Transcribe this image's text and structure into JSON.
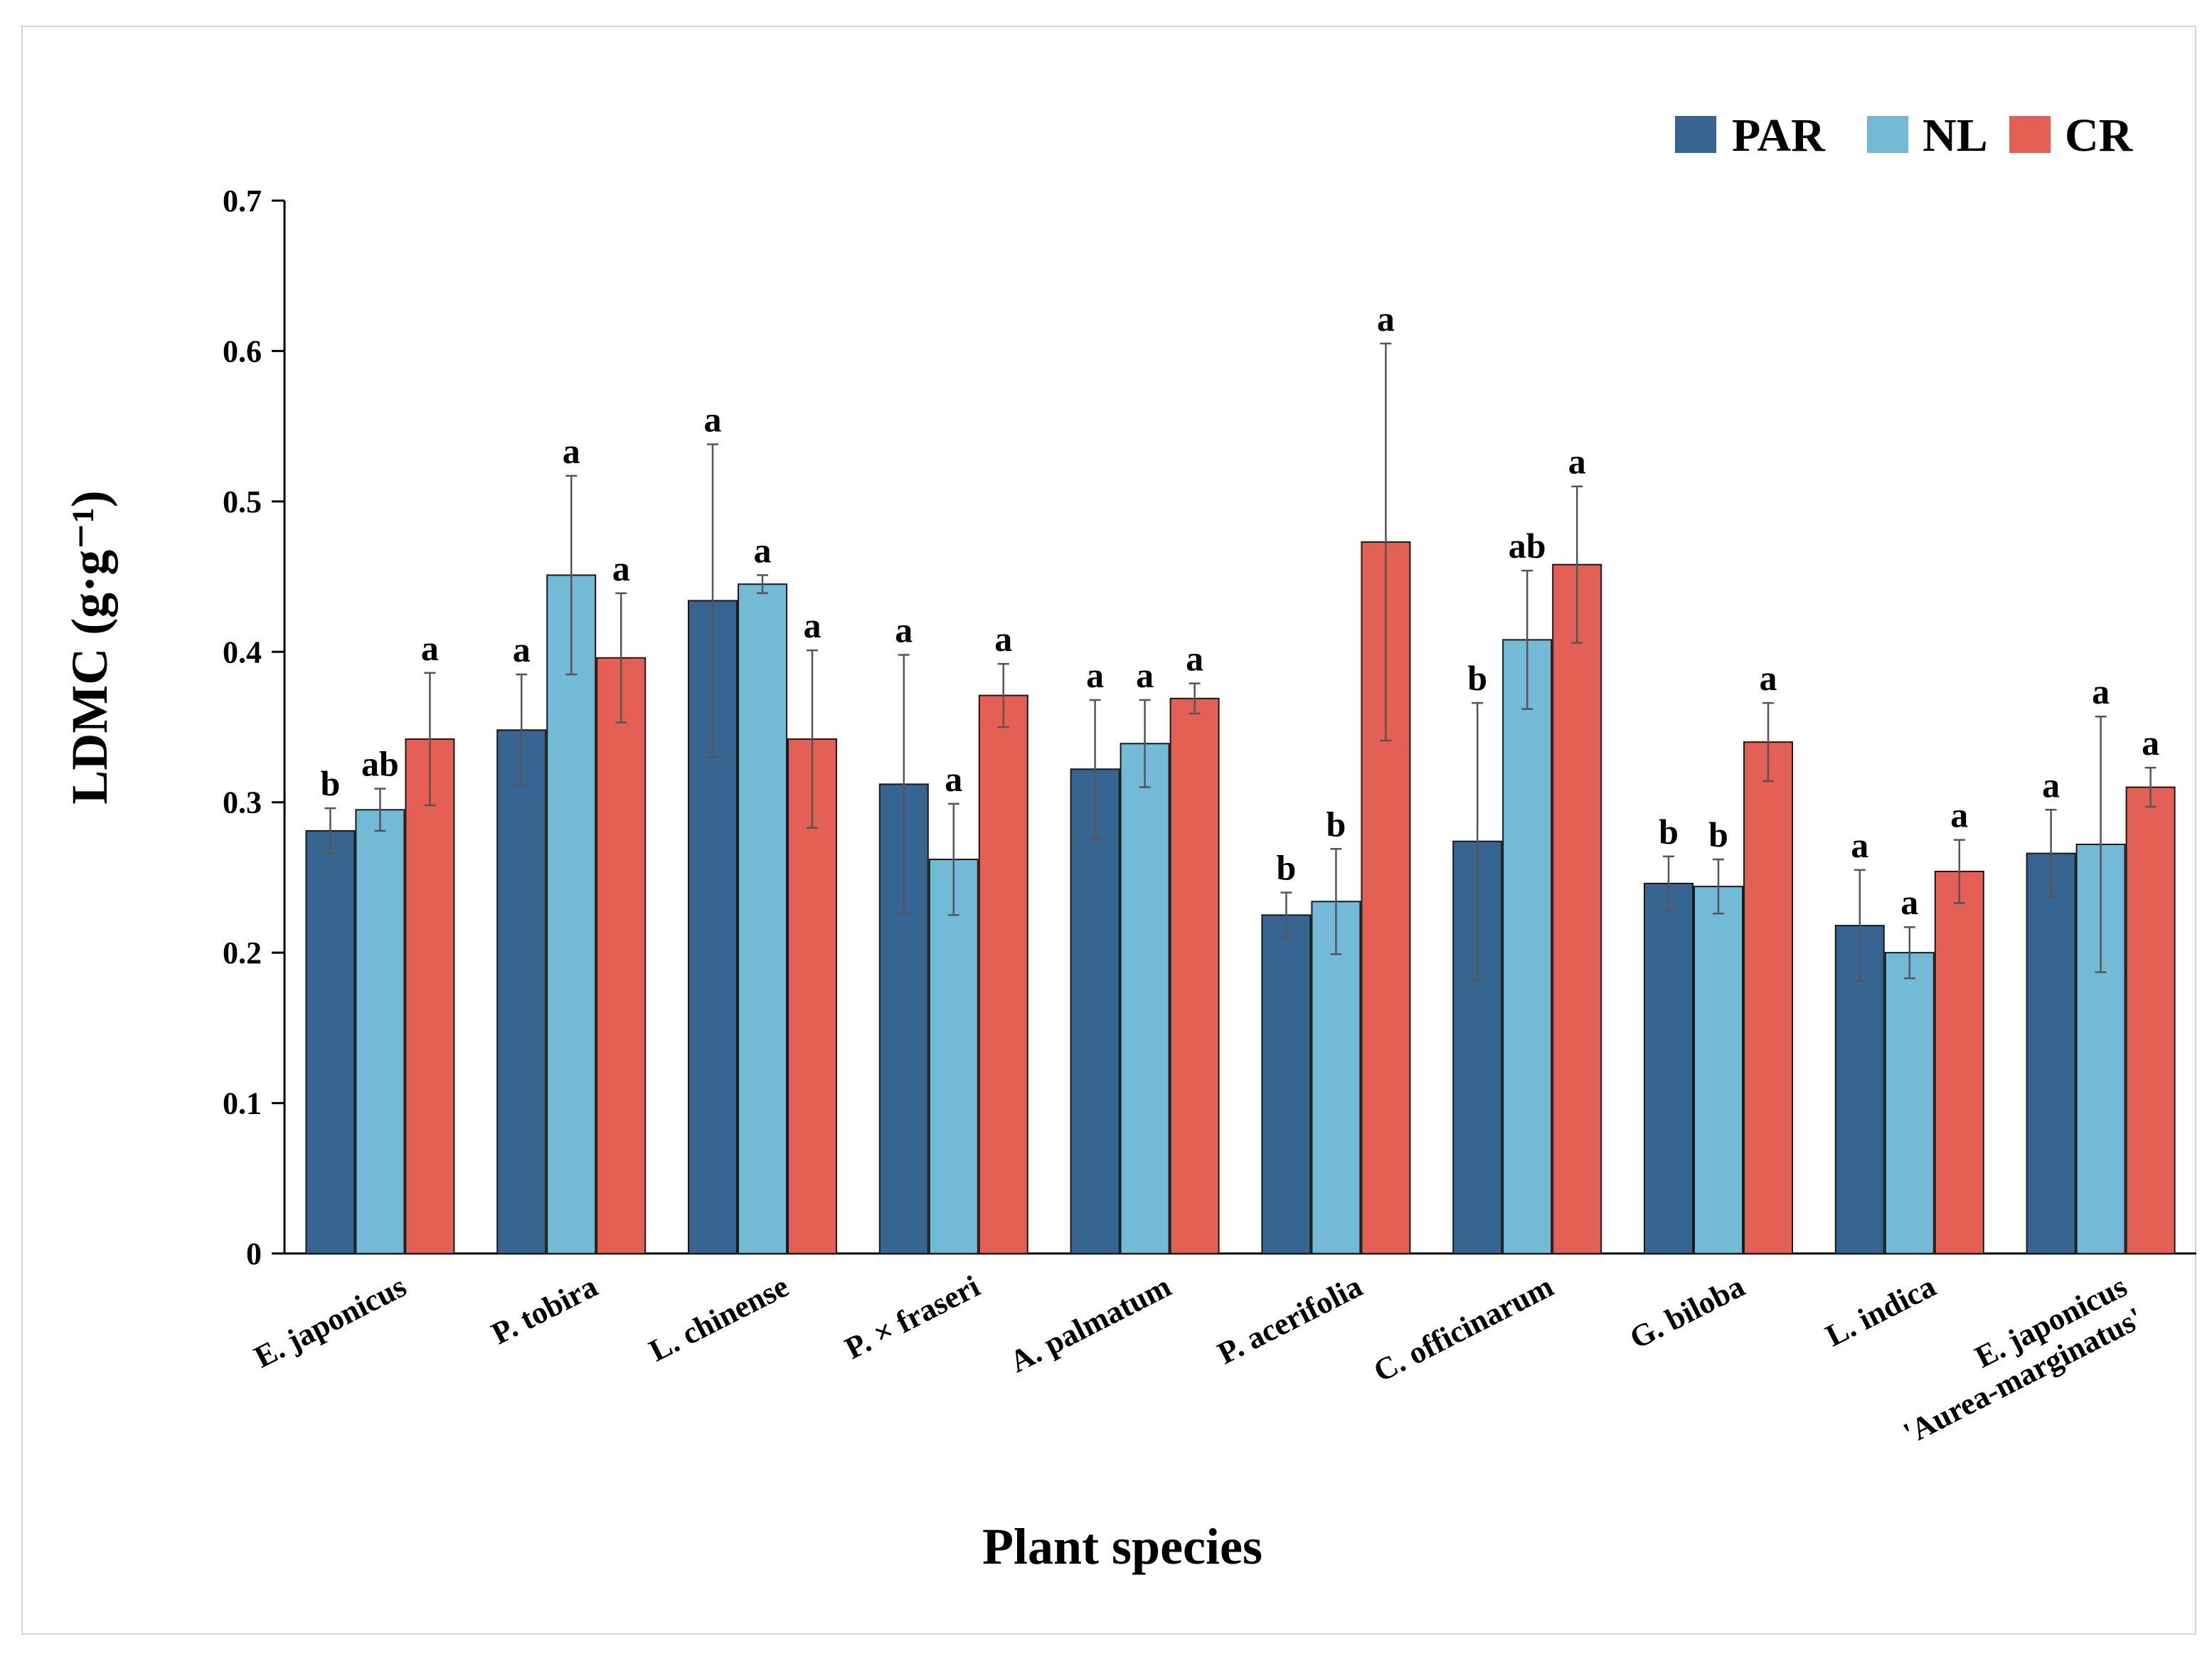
{
  "chart_data": {
    "type": "bar",
    "title": "",
    "xlabel": "Plant species",
    "ylabel": "LDMC (g·g⁻¹)",
    "ylim": [
      0,
      0.7
    ],
    "yticks": [
      "0",
      "0.1",
      "0.2",
      "0.3",
      "0.4",
      "0.5",
      "0.6",
      "0.7"
    ],
    "legend_position": "top-right",
    "categories": [
      [
        "E. japonicus"
      ],
      [
        "P. tobira"
      ],
      [
        "L. chinense"
      ],
      [
        "P. × fraseri"
      ],
      [
        "A. palmatum"
      ],
      [
        "P. acerifolia"
      ],
      [
        "C. officinarum"
      ],
      [
        "G. biloba"
      ],
      [
        "L. indica"
      ],
      [
        "E. japonicus",
        "'Aurea-marginatus'"
      ]
    ],
    "series": [
      {
        "name": "PAR",
        "color": "#376592",
        "values": [
          0.281,
          0.348,
          0.434,
          0.312,
          0.322,
          0.225,
          0.274,
          0.246,
          0.218,
          0.266
        ],
        "errors": [
          0.015,
          0.037,
          0.104,
          0.086,
          0.046,
          0.015,
          0.092,
          0.018,
          0.037,
          0.029
        ],
        "letters": [
          "b",
          "a",
          "a",
          "a",
          "a",
          "b",
          "b",
          "b",
          "a",
          "a"
        ]
      },
      {
        "name": "NL",
        "color": "#72bad6",
        "values": [
          0.295,
          0.451,
          0.445,
          0.262,
          0.339,
          0.234,
          0.408,
          0.244,
          0.2,
          0.272
        ],
        "errors": [
          0.014,
          0.066,
          0.006,
          0.037,
          0.029,
          0.035,
          0.046,
          0.018,
          0.017,
          0.085
        ],
        "letters": [
          "ab",
          "a",
          "a",
          "a",
          "a",
          "b",
          "ab",
          "b",
          "a",
          "a"
        ]
      },
      {
        "name": "CR",
        "color": "#e46055",
        "values": [
          0.342,
          0.396,
          0.342,
          0.371,
          0.369,
          0.473,
          0.458,
          0.34,
          0.254,
          0.31
        ],
        "errors": [
          0.044,
          0.043,
          0.059,
          0.021,
          0.01,
          0.132,
          0.052,
          0.026,
          0.021,
          0.013
        ],
        "letters": [
          "a",
          "a",
          "a",
          "a",
          "a",
          "a",
          "a",
          "a",
          "a",
          "a"
        ]
      }
    ]
  }
}
